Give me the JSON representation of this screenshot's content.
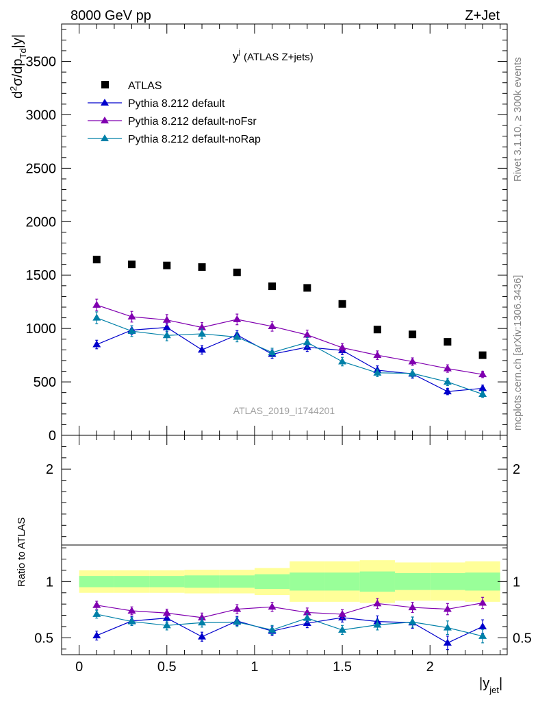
{
  "header": {
    "left": "8000 GeV pp",
    "right": "Z+Jet"
  },
  "side_labels": {
    "rivet": "Rivet 3.1.10, ≥ 300k events",
    "mcplots": "mcplots.cern.ch [arXiv:1306.3436]"
  },
  "plot_title": {
    "main": "y",
    "sup": "j",
    "rest": "(ATLAS Z+jets)"
  },
  "watermark": "ATLAS_2019_I1744201",
  "colors": {
    "data": "#000000",
    "default": "#0000cc",
    "noFsr": "#8000b0",
    "noRap": "#0080a8",
    "band_outer": "#ffff99",
    "band_inner": "#99ff99"
  },
  "chart_data": [
    {
      "type": "scatter",
      "panel": "main",
      "ylabel": "d²σ/dp_Td|y|",
      "ylabel_parts": {
        "a": "d",
        "a_sup": "2",
        "b": "σ/dp",
        "b_sub": "Td",
        "c": "|y|"
      },
      "ylim": [
        0,
        3850
      ],
      "yticks": [
        0,
        500,
        1000,
        1500,
        2000,
        2500,
        3000,
        3500
      ],
      "ytick_labels": [
        "0",
        "500",
        "1000",
        "1500",
        "2000",
        "2500",
        "3000",
        "3500"
      ],
      "xlim": [
        -0.1,
        2.44
      ],
      "x": [
        0.1,
        0.3,
        0.5,
        0.7,
        0.9,
        1.1,
        1.3,
        1.5,
        1.7,
        1.9,
        2.1,
        2.3
      ],
      "legend_position": "top-left",
      "series": [
        {
          "name": "ATLAS",
          "key": "data",
          "marker": "square",
          "values": [
            1645,
            1600,
            1590,
            1575,
            1525,
            1395,
            1380,
            1230,
            990,
            945,
            875,
            750
          ]
        },
        {
          "name": "Pythia 8.212 default",
          "key": "default",
          "marker": "triangle",
          "values": [
            850,
            985,
            1010,
            800,
            940,
            760,
            825,
            795,
            610,
            575,
            410,
            440
          ],
          "errors": [
            40,
            40,
            40,
            40,
            40,
            40,
            40,
            40,
            40,
            40,
            30,
            30
          ]
        },
        {
          "name": "Pythia 8.212 default-noFsr",
          "key": "noFsr",
          "marker": "triangle",
          "values": [
            1220,
            1110,
            1080,
            1010,
            1085,
            1020,
            940,
            820,
            750,
            690,
            625,
            570
          ],
          "errors": [
            55,
            50,
            50,
            45,
            50,
            45,
            45,
            40,
            40,
            35,
            35,
            30
          ]
        },
        {
          "name": "Pythia 8.212 default-noRap",
          "key": "noRap",
          "marker": "triangle",
          "values": [
            1100,
            975,
            935,
            950,
            920,
            775,
            870,
            690,
            585,
            580,
            500,
            385
          ],
          "errors": [
            55,
            50,
            50,
            45,
            45,
            40,
            45,
            40,
            35,
            35,
            35,
            30
          ]
        }
      ]
    },
    {
      "type": "scatter",
      "panel": "ratio",
      "ylabel": "Ratio to ATLAS",
      "xlabel": "|y_jet|",
      "xlabel_parts": {
        "a": "|y",
        "sub": "jet",
        "b": "|"
      },
      "ylim": [
        0.35,
        2.3
      ],
      "yticks": [
        0.5,
        1,
        2
      ],
      "ytick_labels": [
        "0.5",
        "1",
        "2"
      ],
      "xlim": [
        -0.1,
        2.44
      ],
      "xticks": [
        0,
        0.5,
        1,
        1.5,
        2
      ],
      "xtick_labels": [
        "0",
        "0.5",
        "1",
        "1.5",
        "2"
      ],
      "x": [
        0.1,
        0.3,
        0.5,
        0.7,
        0.9,
        1.1,
        1.3,
        1.5,
        1.7,
        1.9,
        2.1,
        2.3
      ],
      "bands": {
        "edges": [
          0,
          0.2,
          0.4,
          0.6,
          0.8,
          1.0,
          1.2,
          1.4,
          1.6,
          1.8,
          2.0,
          2.2,
          2.4
        ],
        "outer": [
          [
            0.9,
            1.1
          ],
          [
            0.9,
            1.1
          ],
          [
            0.9,
            1.1
          ],
          [
            0.895,
            1.105
          ],
          [
            0.895,
            1.105
          ],
          [
            0.88,
            1.12
          ],
          [
            0.82,
            1.18
          ],
          [
            0.82,
            1.18
          ],
          [
            0.81,
            1.19
          ],
          [
            0.83,
            1.17
          ],
          [
            0.83,
            1.17
          ],
          [
            0.82,
            1.18
          ]
        ],
        "inner": [
          [
            0.95,
            1.05
          ],
          [
            0.95,
            1.05
          ],
          [
            0.95,
            1.05
          ],
          [
            0.945,
            1.055
          ],
          [
            0.945,
            1.055
          ],
          [
            0.935,
            1.065
          ],
          [
            0.92,
            1.08
          ],
          [
            0.92,
            1.08
          ],
          [
            0.91,
            1.09
          ],
          [
            0.925,
            1.075
          ],
          [
            0.925,
            1.075
          ],
          [
            0.92,
            1.08
          ]
        ]
      },
      "series": [
        {
          "name": "Pythia 8.212 default",
          "key": "default",
          "marker": "triangle",
          "values": [
            0.52,
            0.65,
            0.675,
            0.51,
            0.65,
            0.56,
            0.63,
            0.68,
            0.645,
            0.635,
            0.455,
            0.6
          ],
          "errors": [
            0.04,
            0.04,
            0.04,
            0.04,
            0.04,
            0.04,
            0.04,
            0.04,
            0.05,
            0.05,
            0.06,
            0.06
          ]
        },
        {
          "name": "Pythia 8.212 default-noFsr",
          "key": "noFsr",
          "marker": "triangle",
          "values": [
            0.79,
            0.74,
            0.72,
            0.68,
            0.755,
            0.775,
            0.725,
            0.71,
            0.805,
            0.77,
            0.755,
            0.81
          ],
          "errors": [
            0.035,
            0.035,
            0.035,
            0.04,
            0.04,
            0.04,
            0.04,
            0.04,
            0.045,
            0.045,
            0.05,
            0.05
          ]
        },
        {
          "name": "Pythia 8.212 default-noRap",
          "key": "noRap",
          "marker": "triangle",
          "values": [
            0.71,
            0.645,
            0.61,
            0.635,
            0.64,
            0.57,
            0.675,
            0.57,
            0.615,
            0.64,
            0.59,
            0.515
          ],
          "errors": [
            0.035,
            0.035,
            0.04,
            0.04,
            0.04,
            0.04,
            0.04,
            0.04,
            0.045,
            0.045,
            0.06,
            0.06
          ]
        }
      ]
    }
  ]
}
